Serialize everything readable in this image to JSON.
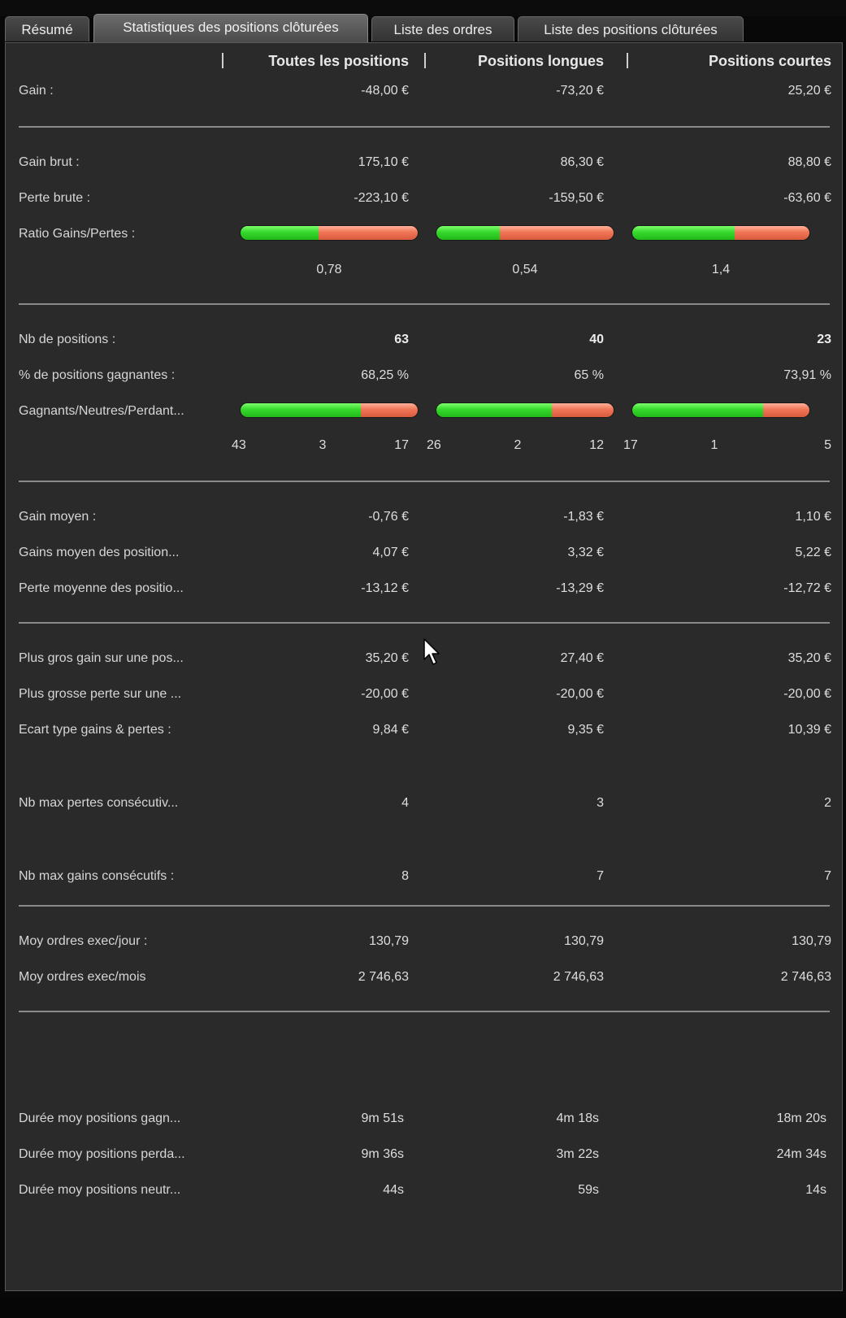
{
  "tabs": [
    {
      "label": "Résumé"
    },
    {
      "label": "Statistiques des positions clôturées"
    },
    {
      "label": "Liste des ordres"
    },
    {
      "label": "Liste des positions clôturées"
    }
  ],
  "columns": [
    "Toutes les positions",
    "Positions longues",
    "Positions courtes"
  ],
  "rows": {
    "gain": {
      "label": "Gain :",
      "values": [
        "-48,00 €",
        "-73,20 €",
        "25,20 €"
      ]
    },
    "gain_brut": {
      "label": "Gain brut :",
      "values": [
        "175,10 €",
        "86,30 €",
        "88,80 €"
      ]
    },
    "perte_brute": {
      "label": "Perte brute :",
      "values": [
        "-223,10 €",
        "-159,50 €",
        "-63,60 €"
      ]
    },
    "ratio": {
      "label": "Ratio Gains/Pertes :",
      "values": [
        "0,78",
        "0,54",
        "1,4"
      ],
      "green_fraction": [
        0.44,
        0.36,
        0.58
      ]
    },
    "nb_positions": {
      "label": "Nb de positions :",
      "values": [
        "63",
        "40",
        "23"
      ]
    },
    "pct_gagnantes": {
      "label": "% de positions gagnantes :",
      "values": [
        "68,25 %",
        "65 %",
        "73,91 %"
      ]
    },
    "gnp": {
      "label": "Gagnants/Neutres/Perdant...",
      "counts": [
        [
          "43",
          "3",
          "17"
        ],
        [
          "26",
          "2",
          "12"
        ],
        [
          "17",
          "1",
          "5"
        ]
      ],
      "green_fraction": [
        0.68,
        0.65,
        0.74
      ]
    },
    "gain_moyen": {
      "label": "Gain moyen :",
      "values": [
        "-0,76 €",
        "-1,83 €",
        "1,10 €"
      ]
    },
    "gains_moyen_pos": {
      "label": "Gains moyen des position...",
      "values": [
        "4,07 €",
        "3,32 €",
        "5,22 €"
      ]
    },
    "perte_moyenne_pos": {
      "label": "Perte moyenne des positio...",
      "values": [
        "-13,12 €",
        "-13,29 €",
        "-12,72 €"
      ]
    },
    "plus_gros_gain": {
      "label": "Plus gros gain sur une pos...",
      "values": [
        "35,20 €",
        "27,40 €",
        "35,20 €"
      ]
    },
    "plus_grosse_perte": {
      "label": "Plus grosse perte sur une ...",
      "values": [
        "-20,00 €",
        "-20,00 €",
        "-20,00 €"
      ]
    },
    "ecart_type": {
      "label": "Ecart type gains & pertes :",
      "values": [
        "9,84 €",
        "9,35 €",
        "10,39 €"
      ]
    },
    "max_pertes_consec": {
      "label": "Nb max pertes consécutiv...",
      "values": [
        "4",
        "3",
        "2"
      ]
    },
    "max_gains_consec": {
      "label": "Nb max gains consécutifs :",
      "values": [
        "8",
        "7",
        "7"
      ]
    },
    "moy_ordres_jour": {
      "label": "Moy ordres exec/jour :",
      "values": [
        "130,79",
        "130,79",
        "130,79"
      ]
    },
    "moy_ordres_mois": {
      "label": "Moy ordres exec/mois",
      "values": [
        "2 746,63",
        "2 746,63",
        "2 746,63"
      ]
    },
    "duree_gagn": {
      "label": "Durée moy positions gagn...",
      "values": [
        "9m 51s",
        "4m 18s",
        "18m 20s"
      ]
    },
    "duree_perda": {
      "label": "Durée moy positions perda...",
      "values": [
        "9m 36s",
        "3m 22s",
        "24m 34s"
      ]
    },
    "duree_neutr": {
      "label": "Durée moy positions neutr...",
      "values": [
        "44s",
        "59s",
        "14s"
      ]
    }
  },
  "colors": {
    "green": "#33d629",
    "red": "#f07556",
    "panel": "#2a2a2a"
  },
  "cursor_icon": "mouse-pointer-icon"
}
